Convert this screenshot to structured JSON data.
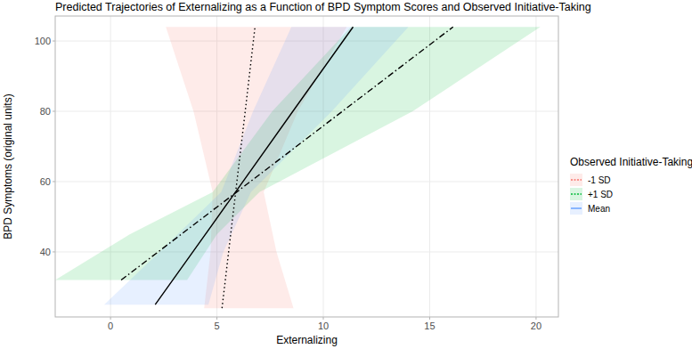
{
  "chart_data": {
    "type": "line",
    "title": "Predicted Trajectories of Externalizing as a Function of BPD Symptom Scores and Observed Initiative-Taking",
    "x_label": "Externalizing",
    "y_label": "BPD Symptoms (original units)",
    "legend_title": "Observed Initiative-Taking",
    "legend": "right",
    "grid": true,
    "xlim": [
      -2.6,
      21.05
    ],
    "xticks": [
      0,
      5,
      10,
      15,
      20
    ],
    "ylim": [
      21.5,
      107.1
    ],
    "yticks": [
      40,
      60,
      80,
      100
    ],
    "series": [
      {
        "name": "-1 SD",
        "color": "#F8766D",
        "line_style": "dotted",
        "x": [
          5.24,
          5.55,
          5.88,
          6.33,
          6.79
        ],
        "values": [
          24,
          40,
          57,
          80,
          104
        ],
        "x_lower": [
          4.4,
          4.7,
          4.8,
          3.9,
          2.6
        ],
        "x_upper": [
          8.6,
          7.8,
          7.2,
          8.8,
          11.1
        ]
      },
      {
        "name": "+1 SD",
        "color": "#00BA38",
        "line_style": "dashdot",
        "x": [
          0.5,
          3.32,
          5.92,
          10.9,
          16.1
        ],
        "values": [
          32,
          45,
          57,
          80,
          104
        ],
        "x_lower": [
          -2.6,
          0.9,
          4.8,
          7.6,
          11.3
        ],
        "x_upper": [
          3.6,
          5.0,
          7.0,
          14.2,
          20.2
        ]
      },
      {
        "name": "Mean",
        "color": "#619CFF",
        "line_style": "solid",
        "x": [
          2.1,
          3.87,
          5.87,
          8.57,
          11.4
        ],
        "values": [
          25,
          40,
          57,
          80,
          104
        ],
        "x_lower": [
          -0.3,
          2.3,
          5.2,
          6.7,
          8.5
        ],
        "x_upper": [
          4.6,
          5.3,
          6.6,
          10.4,
          14.0
        ]
      }
    ]
  }
}
